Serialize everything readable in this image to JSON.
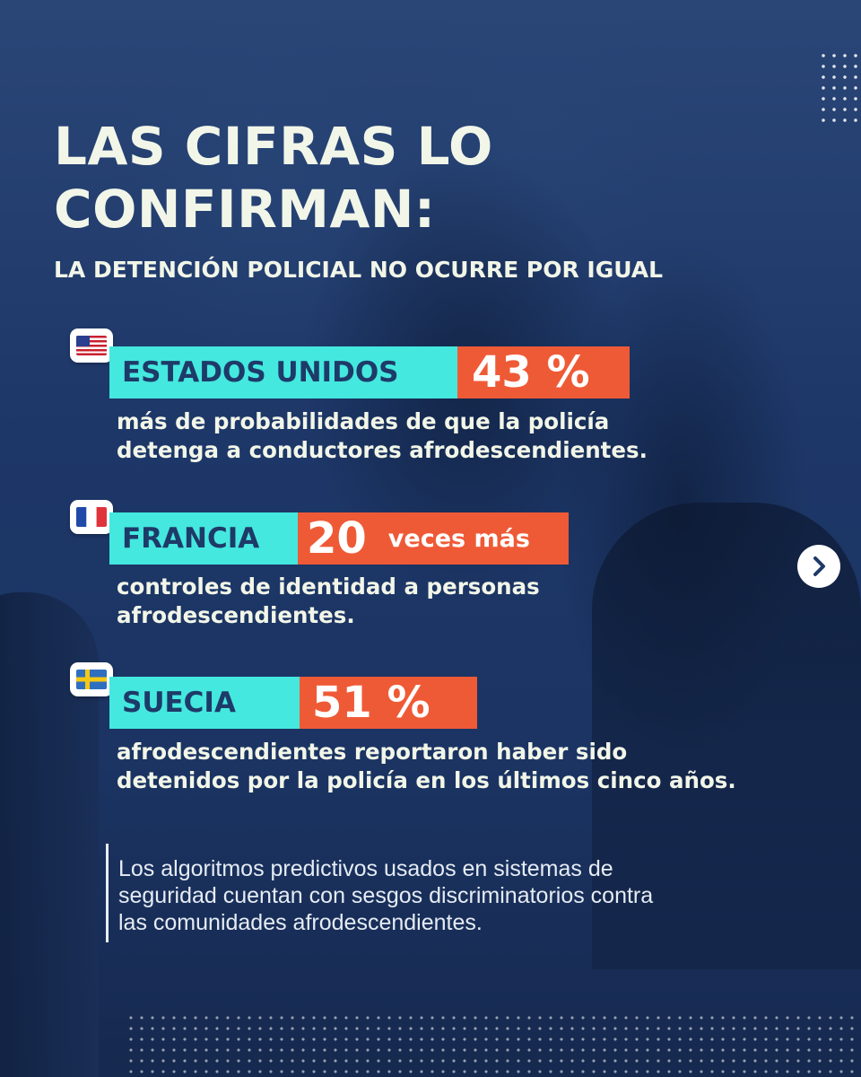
{
  "title_lines": [
    "LAS CIFRAS LO",
    "CONFIRMAN:"
  ],
  "subtitle": "LA DETENCIÓN POLICIAL NO OCURRE POR IGUAL",
  "stats": [
    {
      "country": "ESTADOS UNIDOS",
      "flag_icon": "usa-flag-icon",
      "value": "43 %",
      "desc_lines": [
        "más de probabilidades de que la policía",
        "detenga a conductores afrodescendientes."
      ]
    },
    {
      "country": "FRANCIA",
      "flag_icon": "france-flag-icon",
      "value": "20",
      "value_suffix": "veces más",
      "desc_lines": [
        "controles de identidad a personas",
        "afrodescendientes."
      ]
    },
    {
      "country": "SUECIA",
      "flag_icon": "sweden-flag-icon",
      "value": "51 %",
      "desc_lines": [
        "afrodescendientes reportaron haber sido",
        "detenidos por la policía en los últimos cinco años."
      ]
    }
  ],
  "note_lines": [
    "Los algoritmos predictivos usados en sistemas de",
    "seguridad cuentan con sesgos discriminatorios contra",
    "las comunidades afrodescendientes."
  ],
  "colors": {
    "background": "#1e3a68",
    "label_bg": "#44e8df",
    "value_bg": "#ef5a36",
    "text": "#f2f6e8"
  },
  "icons": {
    "next": "chevron-right-icon"
  }
}
